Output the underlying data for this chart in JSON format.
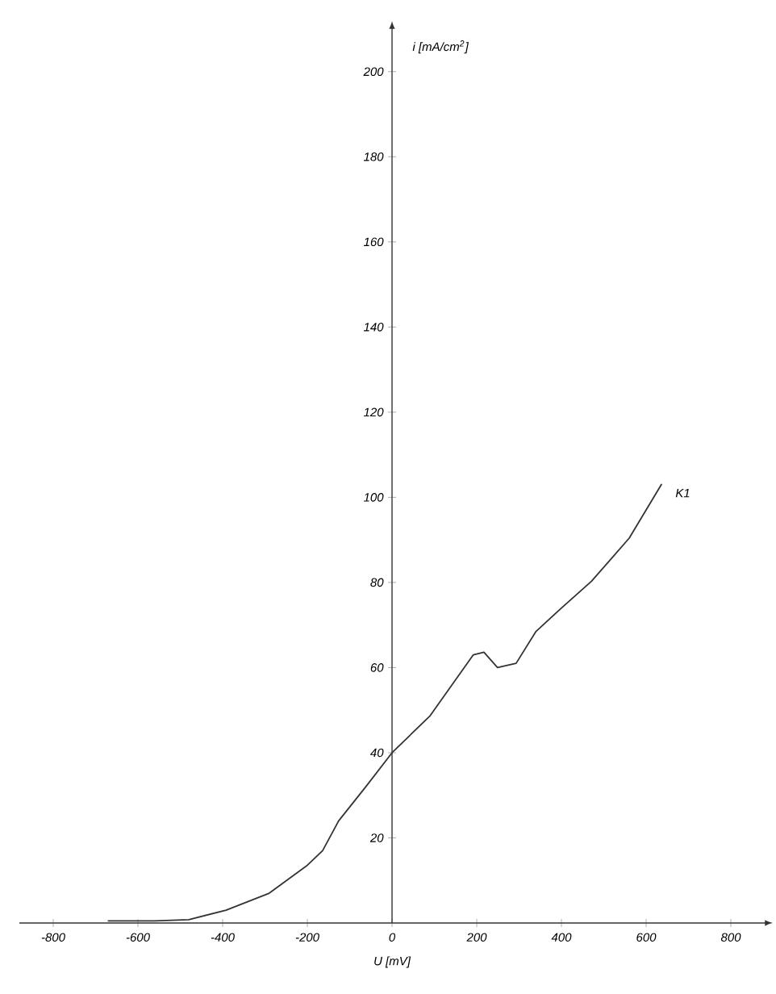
{
  "chart_data": {
    "type": "line",
    "xlabel": "U [mV]",
    "ylabel": "i [mA/cm$^{2}$]",
    "xlim": [
      -880,
      880
    ],
    "ylim": [
      0,
      210
    ],
    "xticks": [
      -800,
      -600,
      -400,
      -200,
      0,
      200,
      400,
      600,
      800
    ],
    "yticks": [
      20,
      40,
      60,
      80,
      100,
      120,
      140,
      160,
      180,
      200
    ],
    "grid": false,
    "legend": false,
    "marker": "none",
    "line_style": "solid",
    "series": [
      {
        "name": "K1",
        "color": "#333333",
        "x": [
          -670,
          -560,
          -480,
          -392,
          -290,
          -202,
          -164,
          -126,
          -62,
          0,
          90,
          192,
          217,
          249,
          293,
          340,
          400,
          471,
          560,
          636
        ],
        "values": [
          0.5,
          0.5,
          0.8,
          3,
          7,
          13.4,
          17,
          24,
          32,
          40,
          48.7,
          63,
          63.6,
          60,
          61,
          68.5,
          74,
          80.3,
          90.4,
          103
        ]
      }
    ]
  }
}
